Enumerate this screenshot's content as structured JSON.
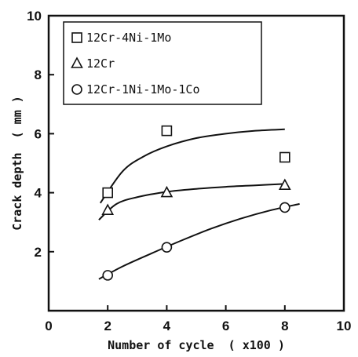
{
  "chart_data": {
    "type": "scatter",
    "xlabel": "Number of cycle  ( x100 )",
    "ylabel": "Crack depth  ( mm )",
    "xlim": [
      0,
      10
    ],
    "ylim": [
      0,
      10
    ],
    "xticks": [
      "0",
      "2",
      "4",
      "6",
      "8",
      "10"
    ],
    "yticks": [
      "2",
      "4",
      "6",
      "8",
      "10"
    ],
    "grid": false,
    "legend_position": "top-left",
    "series": [
      {
        "name": "12Cr-4Ni-1Mo",
        "marker": "square",
        "x": [
          2,
          4,
          8
        ],
        "y": [
          4.0,
          6.1,
          5.2
        ],
        "fit_x": [
          1.75,
          2.5,
          3.2,
          4.0,
          5.0,
          6.0,
          7.0,
          8.0
        ],
        "fit_y": [
          3.65,
          4.72,
          5.22,
          5.57,
          5.85,
          6.0,
          6.1,
          6.15
        ]
      },
      {
        "name": "12Cr",
        "marker": "triangle",
        "x": [
          2,
          4,
          8
        ],
        "y": [
          3.4,
          4.0,
          4.25
        ],
        "fit_x": [
          1.7,
          2.3,
          3.0,
          4.0,
          5.0,
          6.0,
          7.0,
          8.0
        ],
        "fit_y": [
          3.08,
          3.62,
          3.85,
          4.03,
          4.13,
          4.2,
          4.25,
          4.3
        ]
      },
      {
        "name": "12Cr-1Ni-1Mo-1Co",
        "marker": "circle",
        "x": [
          2,
          4,
          8
        ],
        "y": [
          1.2,
          2.15,
          3.5
        ],
        "fit_x": [
          1.7,
          2.5,
          3.5,
          4.5,
          5.5,
          6.5,
          7.5,
          8.5
        ],
        "fit_y": [
          1.07,
          1.5,
          1.95,
          2.38,
          2.78,
          3.12,
          3.4,
          3.62
        ]
      }
    ]
  }
}
